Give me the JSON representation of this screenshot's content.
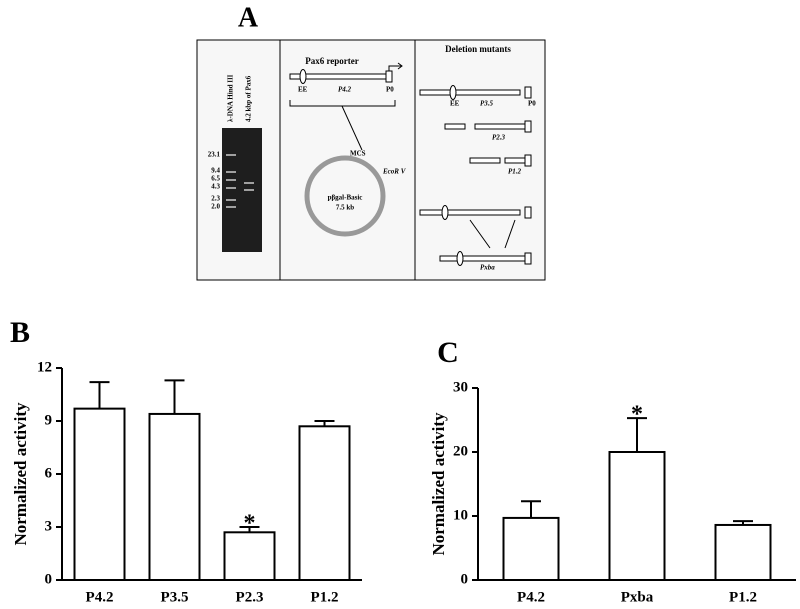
{
  "panel_a": {
    "label": "A",
    "gel": {
      "lanes": [
        "λ-DNA Hind III",
        "4.2 kbp of Pax6"
      ],
      "ladder": [
        "23.1",
        "9.4",
        "6.5",
        "4.3",
        "2.3",
        "2.0"
      ]
    },
    "reporter": {
      "title": "Pax6 reporter",
      "enhancer": "EE",
      "construct": "P4.2",
      "promoter": "P0",
      "plasmid": "pβgal-Basic",
      "size": "7.5 kb",
      "mcs": "MCS",
      "site": "EcoR V"
    },
    "mutants": {
      "title": "Deletion mutants",
      "enhancer": "EE",
      "promoter": "P0",
      "constructs": [
        "P3.5",
        "P2.3",
        "P1.2",
        "Pxba"
      ]
    }
  },
  "chart_data": [
    {
      "type": "bar",
      "title": "B",
      "ylabel": "Normalized activity",
      "categories": [
        "P4.2",
        "P3.5",
        "P2.3",
        "P1.2"
      ],
      "values": [
        9.7,
        9.4,
        2.7,
        8.7
      ],
      "errors": [
        1.5,
        1.9,
        0.3,
        0.3
      ],
      "color": "#ffffff",
      "ylim": [
        0,
        12
      ],
      "yticks": [
        0,
        3,
        6,
        9,
        12
      ],
      "annotations": [
        {
          "text": "*",
          "category": "P2.3"
        }
      ]
    },
    {
      "type": "bar",
      "title": "C",
      "ylabel": "Normalized activity",
      "categories": [
        "P4.2",
        "Pxba",
        "P1.2"
      ],
      "values": [
        9.7,
        20,
        8.6
      ],
      "errors": [
        2.6,
        5.3,
        0.6
      ],
      "color": "#ffffff",
      "ylim": [
        0,
        30
      ],
      "yticks": [
        0,
        10,
        20,
        30
      ],
      "annotations": [
        {
          "text": "*",
          "category": "Pxba"
        }
      ]
    }
  ]
}
